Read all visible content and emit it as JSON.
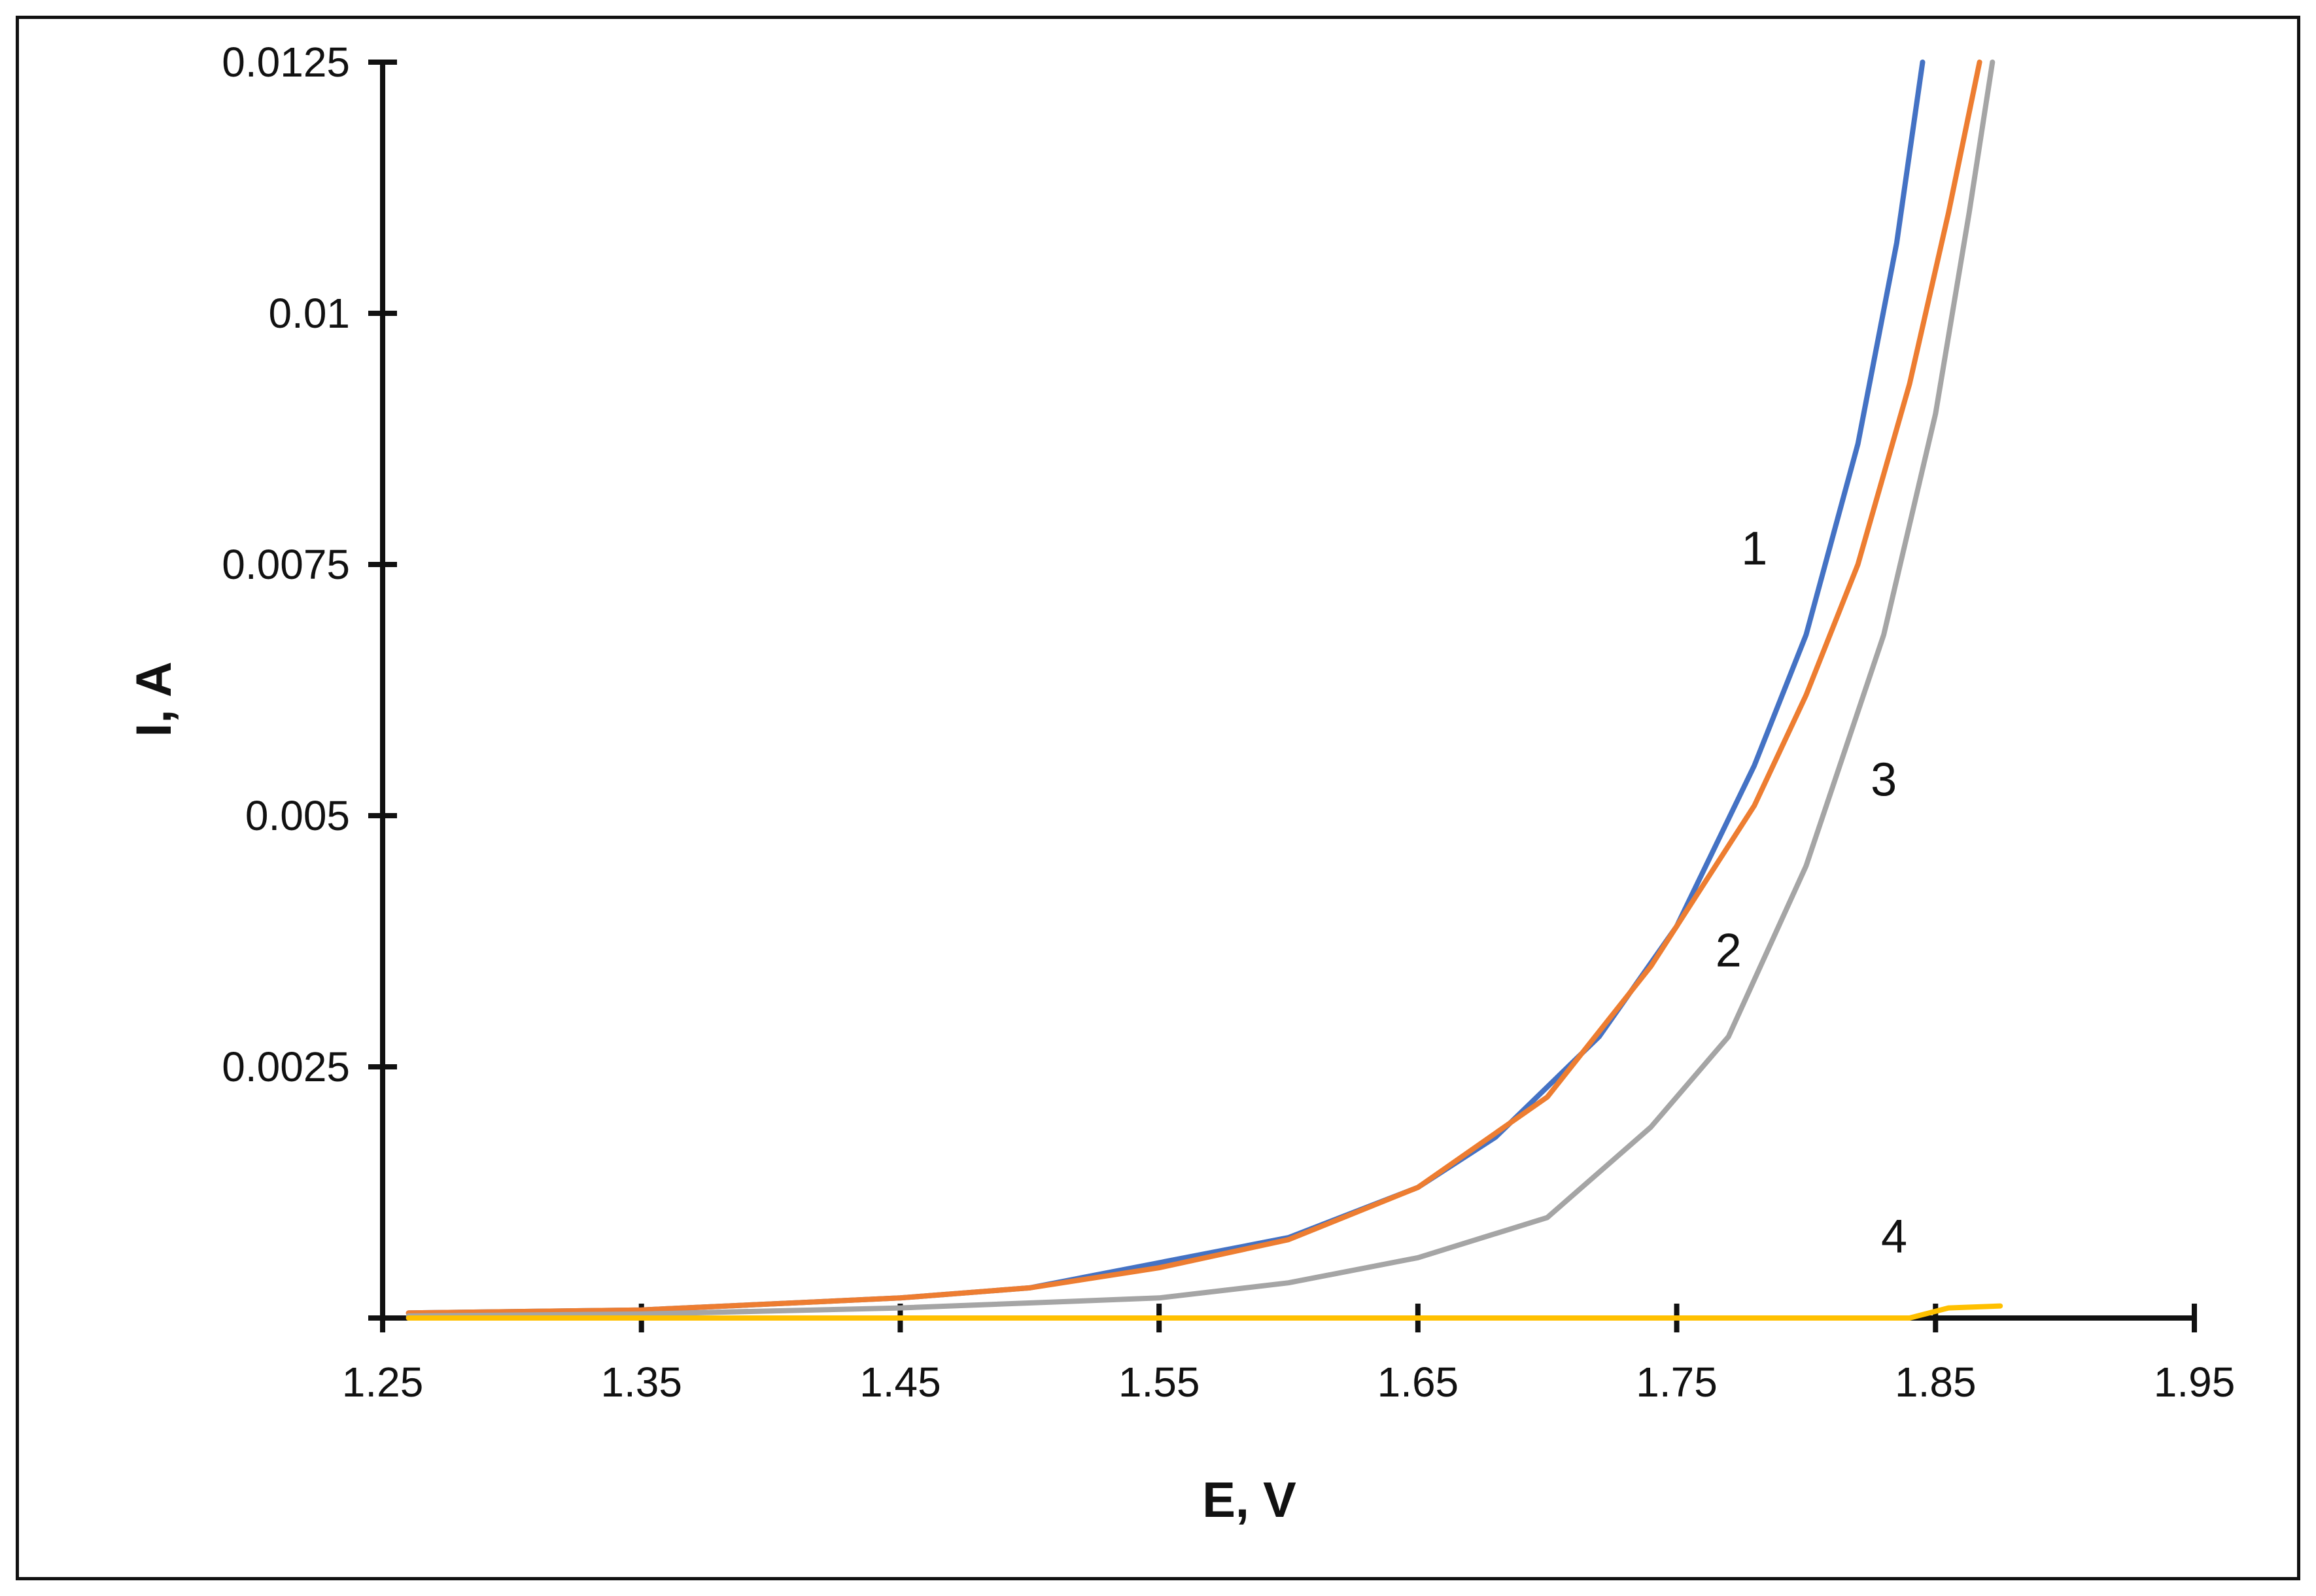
{
  "chart_data": {
    "type": "line",
    "title": "",
    "xlabel": "E, V",
    "ylabel": "I, A",
    "xlim": [
      1.25,
      1.95
    ],
    "ylim": [
      0,
      0.0125
    ],
    "x_ticks": [
      1.25,
      1.35,
      1.45,
      1.55,
      1.65,
      1.75,
      1.85,
      1.95
    ],
    "x_tick_labels": [
      "1.25",
      "1.35",
      "1.45",
      "1.55",
      "1.65",
      "1.75",
      "1.85",
      "1.95"
    ],
    "y_ticks": [
      0,
      0.0025,
      0.005,
      0.0075,
      0.01,
      0.0125
    ],
    "y_tick_labels": [
      "",
      "0.0025",
      "0.005",
      "0.0075",
      "0.01",
      "0.0125"
    ],
    "grid": false,
    "legend": "none",
    "series": [
      {
        "name": "1",
        "color": "#4472C4",
        "label_at": [
          1.78,
          0.0075
        ],
        "points": [
          [
            1.26,
            5e-05
          ],
          [
            1.35,
            8e-05
          ],
          [
            1.45,
            0.0002
          ],
          [
            1.5,
            0.0003
          ],
          [
            1.55,
            0.00055
          ],
          [
            1.6,
            0.0008
          ],
          [
            1.65,
            0.0013
          ],
          [
            1.68,
            0.0018
          ],
          [
            1.72,
            0.0028
          ],
          [
            1.75,
            0.0039
          ],
          [
            1.78,
            0.0055
          ],
          [
            1.8,
            0.0068
          ],
          [
            1.82,
            0.0087
          ],
          [
            1.835,
            0.0107
          ],
          [
            1.845,
            0.0125
          ]
        ]
      },
      {
        "name": "2",
        "color": "#ED7D31",
        "label_at": [
          1.77,
          0.0035
        ],
        "points": [
          [
            1.26,
            5e-05
          ],
          [
            1.35,
            8e-05
          ],
          [
            1.45,
            0.0002
          ],
          [
            1.5,
            0.0003
          ],
          [
            1.55,
            0.0005
          ],
          [
            1.6,
            0.00078
          ],
          [
            1.65,
            0.0013
          ],
          [
            1.7,
            0.0022
          ],
          [
            1.74,
            0.0035
          ],
          [
            1.78,
            0.0051
          ],
          [
            1.8,
            0.0062
          ],
          [
            1.82,
            0.0075
          ],
          [
            1.84,
            0.0093
          ],
          [
            1.855,
            0.011
          ],
          [
            1.867,
            0.0125
          ]
        ]
      },
      {
        "name": "3",
        "color": "#A5A5A5",
        "label_at": [
          1.83,
          0.0052
        ],
        "points": [
          [
            1.26,
            2e-05
          ],
          [
            1.35,
            4e-05
          ],
          [
            1.45,
            0.0001
          ],
          [
            1.55,
            0.0002
          ],
          [
            1.6,
            0.00035
          ],
          [
            1.65,
            0.0006
          ],
          [
            1.7,
            0.001
          ],
          [
            1.74,
            0.0019
          ],
          [
            1.77,
            0.0028
          ],
          [
            1.8,
            0.0045
          ],
          [
            1.83,
            0.0068
          ],
          [
            1.85,
            0.009
          ],
          [
            1.863,
            0.011
          ],
          [
            1.872,
            0.0125
          ]
        ]
      },
      {
        "name": "4",
        "color": "#FFC000",
        "label_at": [
          1.834,
          0.00065
        ],
        "points": [
          [
            1.26,
            0.0
          ],
          [
            1.84,
            0.0
          ],
          [
            1.855,
            0.0001
          ],
          [
            1.875,
            0.00012
          ]
        ]
      }
    ]
  }
}
